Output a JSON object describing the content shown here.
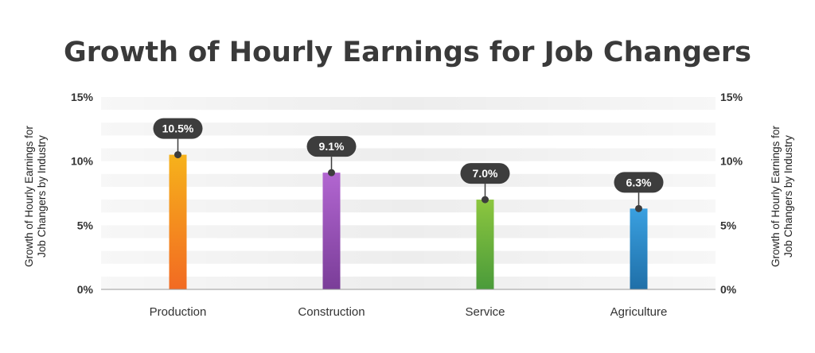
{
  "chart_data": {
    "type": "bar",
    "title": "Growth of Hourly Earnings for Job Changers",
    "ylabel_lines": [
      "Growth of Hourly Earnings for",
      "Job Changers by Industry"
    ],
    "categories": [
      "Production",
      "Construction",
      "Service",
      "Agriculture"
    ],
    "values": [
      10.5,
      9.1,
      7.0,
      6.3
    ],
    "data_labels": [
      "10.5%",
      "9.1%",
      "7.0%",
      "6.3%"
    ],
    "ylim": [
      0,
      15
    ],
    "yticks": [
      0,
      5,
      10,
      15
    ],
    "ytick_labels": [
      "0%",
      "5%",
      "10%",
      "15%"
    ],
    "secondary_axis": true,
    "grid": "horizontal bands",
    "colors": {
      "bar_gradients": [
        [
          "#f6b21b",
          "#f26a22"
        ],
        [
          "#b266d1",
          "#7a3d98"
        ],
        [
          "#8cc63f",
          "#4a9b3a"
        ],
        [
          "#3aa0e0",
          "#1f6fa8"
        ]
      ],
      "callout": "#3d3d3d",
      "band": "#ededed",
      "text": "#333333"
    }
  }
}
